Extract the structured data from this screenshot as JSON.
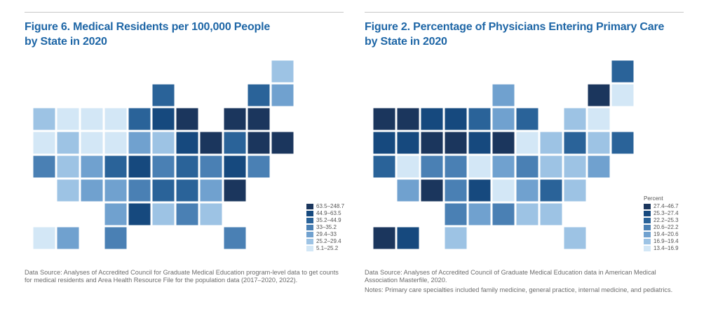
{
  "palette": [
    "#1b365d",
    "#16497e",
    "#2a6399",
    "#4a80b4",
    "#70a1cf",
    "#9dc3e4",
    "#d3e7f6"
  ],
  "figures": [
    {
      "title_line1": "Figure 6. Medical Residents per 100,000 People",
      "title_line2": "by State in 2020",
      "legend_title": "",
      "legend": [
        "63.5–248.7",
        "44.9–63.5",
        "35.2–44.9",
        "33–35.2",
        "29.4–33",
        "25.2–29.4",
        "5.1–25.2"
      ],
      "state_class": {
        "WA": 5,
        "OR": 6,
        "ID": 6,
        "MT": 6,
        "WY": 6,
        "ND": 6,
        "SD": 6,
        "NV": 5,
        "CA": 3,
        "UT": 5,
        "CO": 4,
        "AZ": 5,
        "NM": 4,
        "TX": 3,
        "OK": 4,
        "KS": 4,
        "NE": 2,
        "IA": 4,
        "MN": 2,
        "WI": 2,
        "MI": 0,
        "IL": 1,
        "IN": 5,
        "OH": 1,
        "KY": 3,
        "TN": 2,
        "MO": 1,
        "AR": 3,
        "LA": 1,
        "MS": 5,
        "AL": 3,
        "GA": 5,
        "FL": 3,
        "SC": 4,
        "NC": 2,
        "VA": 3,
        "WV": 2,
        "PA": 0,
        "NY": 0,
        "VT": 2,
        "NH": 4,
        "ME": 5,
        "MA": 0,
        "RI": 0,
        "CT": 0,
        "NJ": 2,
        "DE": 3,
        "MD": 1,
        "DC": 0,
        "AK": 6,
        "HI": 4
      },
      "source": "Data Source: Analyses of Accredited Council for Graduate Medical Education program-level data to get counts for medical residents and Area Health Resource File for the population data (2017–2020, 2022).",
      "notes": ""
    },
    {
      "title_line1": "Figure 2. Percentage of Physicians Entering Primary Care",
      "title_line2": "by State in 2020",
      "legend_title": "Percent",
      "legend": [
        "27.4–46.7",
        "25.3–27.4",
        "22.2–25.3",
        "20.6–22.2",
        "19.4–20.6",
        "16.9–19.4",
        "13.4–16.9"
      ],
      "state_class": {
        "WA": 0,
        "OR": 1,
        "ID": 0,
        "MT": 1,
        "WY": 0,
        "ND": 1,
        "SD": 0,
        "NV": 1,
        "CA": 2,
        "UT": 6,
        "CO": 3,
        "AZ": 4,
        "NM": 0,
        "TX": 5,
        "OK": 3,
        "KS": 3,
        "NE": 3,
        "IA": 1,
        "MN": 2,
        "WI": 4,
        "MI": 2,
        "IL": 4,
        "IN": 0,
        "OH": 6,
        "KY": 4,
        "TN": 6,
        "MO": 6,
        "AR": 1,
        "LA": 4,
        "MS": 3,
        "AL": 5,
        "GA": 5,
        "FL": 5,
        "SC": 2,
        "NC": 4,
        "VA": 5,
        "WV": 3,
        "PA": 5,
        "NY": 5,
        "VT": 0,
        "NH": 6,
        "ME": 2,
        "MA": 6,
        "RI": 2,
        "CT": 5,
        "NJ": 2,
        "DE": 4,
        "MD": 5,
        "DC": 5,
        "AK": 0,
        "HI": 1
      },
      "source": "Data Source: Analyses of Accredited Council of Graduate Medical Education data in American Medical Association Masterfile, 2020.",
      "notes": "Notes: Primary care specialties included family medicine, general practice, internal medicine, and pediatrics."
    }
  ]
}
